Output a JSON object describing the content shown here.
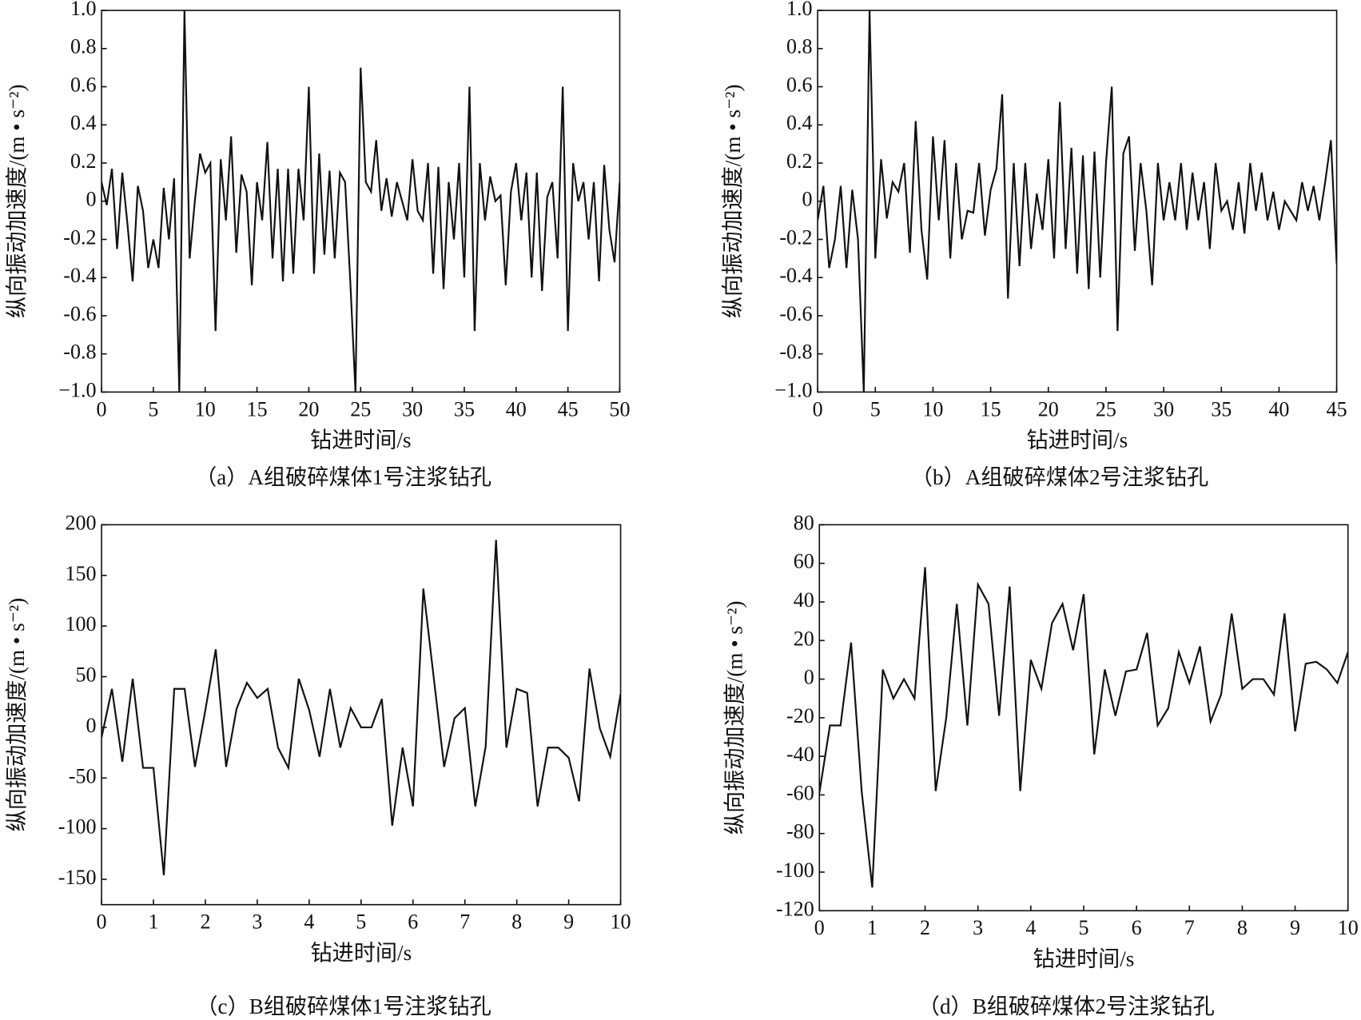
{
  "chart_data": [
    {
      "type": "line",
      "title": "（a）A组破碎煤体1号注浆钻孔",
      "xlabel": "钻进时间/s",
      "ylabel": "纵向振动加速度/(m • s⁻²)",
      "color": "#111111",
      "xlim": [
        0,
        50
      ],
      "xticks": [
        0,
        5,
        10,
        15,
        20,
        25,
        30,
        35,
        40,
        45,
        50
      ],
      "ylim": [
        -1,
        1
      ],
      "yticks": [
        {
          "value": -1,
          "label": "−1.0"
        },
        -0.8,
        -0.6,
        -0.4,
        -0.2,
        0,
        0.2,
        0.4,
        0.6,
        0.8,
        {
          "value": 1,
          "label": "1.0"
        }
      ],
      "x": [
        0,
        0.5,
        1,
        1.5,
        2,
        2.5,
        3,
        3.5,
        4,
        4.5,
        5,
        5.5,
        6,
        6.5,
        7,
        7.5,
        8,
        8.5,
        9,
        9.5,
        10,
        10.5,
        11,
        11.5,
        12,
        12.5,
        13,
        13.5,
        14,
        14.5,
        15,
        15.5,
        16,
        16.5,
        17,
        17.5,
        18,
        18.5,
        19,
        19.5,
        20,
        20.5,
        21,
        21.5,
        22,
        22.5,
        23,
        23.5,
        24,
        24.5,
        25,
        25.5,
        26,
        26.5,
        27,
        27.5,
        28,
        28.5,
        29,
        29.5,
        30,
        30.5,
        31,
        31.5,
        32,
        32.5,
        33,
        33.5,
        34,
        34.5,
        35,
        35.5,
        36,
        36.5,
        37,
        37.5,
        38,
        38.5,
        39,
        39.5,
        40,
        40.5,
        41,
        41.5,
        42,
        42.5,
        43,
        43.5,
        44,
        44.5,
        45,
        45.5,
        46,
        46.5,
        47,
        47.5,
        48,
        48.5,
        49,
        49.5,
        50
      ],
      "values": [
        0.1,
        -0.02,
        0.17,
        -0.25,
        0.15,
        -0.12,
        -0.42,
        0.08,
        -0.05,
        -0.35,
        -0.2,
        -0.35,
        0.07,
        -0.2,
        0.12,
        -1,
        1,
        -0.3,
        0,
        0.25,
        0.15,
        0.2,
        -0.68,
        0.22,
        -0.1,
        0.34,
        -0.27,
        0.14,
        0.05,
        -0.44,
        0.1,
        -0.1,
        0.31,
        -0.3,
        0.17,
        -0.42,
        0.17,
        -0.38,
        0.17,
        -0.1,
        0.6,
        -0.38,
        0.25,
        -0.28,
        0.16,
        -0.3,
        0.15,
        0.1,
        -0.42,
        -1,
        0.7,
        0.1,
        0.05,
        0.32,
        -0.05,
        0.12,
        -0.08,
        0.1,
        0,
        -0.1,
        0.22,
        -0.05,
        -0.1,
        0.2,
        -0.38,
        0.18,
        -0.46,
        0.1,
        -0.2,
        0.2,
        -0.4,
        0.6,
        -0.68,
        0.2,
        -0.1,
        0.13,
        0,
        0.03,
        -0.44,
        0.05,
        0.2,
        -0.1,
        0.15,
        -0.4,
        0.15,
        -0.47,
        0.02,
        0.1,
        -0.3,
        0.6,
        -0.68,
        0.2,
        0,
        0.1,
        -0.2,
        0.1,
        -0.42,
        0.19,
        -0.15,
        -0.32,
        0.1
      ]
    },
    {
      "type": "line",
      "title": "（b）A组破碎煤体2号注浆钻孔",
      "xlabel": "钻进时间/s",
      "ylabel": "纵向振动加速度/(m • s⁻²)",
      "color": "#111111",
      "xlim": [
        0,
        45
      ],
      "xticks": [
        0,
        5,
        10,
        15,
        20,
        25,
        30,
        35,
        40,
        45
      ],
      "ylim": [
        -1,
        1
      ],
      "yticks": [
        {
          "value": -1,
          "label": "−1.0"
        },
        -0.8,
        -0.6,
        -0.4,
        -0.2,
        0,
        0.2,
        0.4,
        0.6,
        0.8,
        {
          "value": 1,
          "label": "1.0"
        }
      ],
      "x": [
        0,
        0.5,
        1,
        1.5,
        2,
        2.5,
        3,
        3.5,
        4,
        4.5,
        5,
        5.5,
        6,
        6.5,
        7,
        7.5,
        8,
        8.5,
        9,
        9.5,
        10,
        10.5,
        11,
        11.5,
        12,
        12.5,
        13,
        13.5,
        14,
        14.5,
        15,
        15.5,
        16,
        16.5,
        17,
        17.5,
        18,
        18.5,
        19,
        19.5,
        20,
        20.5,
        21,
        21.5,
        22,
        22.5,
        23,
        23.5,
        24,
        24.5,
        25,
        25.5,
        26,
        26.5,
        27,
        27.5,
        28,
        28.5,
        29,
        29.5,
        30,
        30.5,
        31,
        31.5,
        32,
        32.5,
        33,
        33.5,
        34,
        34.5,
        35,
        35.5,
        36,
        36.5,
        37,
        37.5,
        38,
        38.5,
        39,
        39.5,
        40,
        40.5,
        41,
        41.5,
        42,
        42.5,
        43,
        43.5,
        44,
        44.5,
        45
      ],
      "values": [
        -0.1,
        0.08,
        -0.35,
        -0.2,
        0.08,
        -0.35,
        0.06,
        -0.2,
        -1,
        1,
        -0.3,
        0.22,
        -0.09,
        0.1,
        0.05,
        0.2,
        -0.27,
        0.42,
        -0.15,
        -0.41,
        0.34,
        -0.1,
        0.32,
        -0.3,
        0.2,
        -0.2,
        -0.05,
        -0.06,
        0.2,
        -0.18,
        0.06,
        0.17,
        0.56,
        -0.51,
        0.2,
        -0.34,
        0.2,
        -0.25,
        0.04,
        -0.15,
        0.22,
        -0.3,
        0.52,
        -0.25,
        0.28,
        -0.38,
        0.24,
        -0.46,
        0.26,
        -0.4,
        0.2,
        0.6,
        -0.68,
        0.25,
        0.34,
        -0.26,
        0.2,
        -0.05,
        -0.44,
        0.2,
        -0.1,
        0.1,
        -0.1,
        0.2,
        -0.15,
        0.15,
        -0.1,
        0.1,
        -0.25,
        0.2,
        -0.05,
        0,
        -0.15,
        0.1,
        -0.17,
        0.2,
        -0.05,
        0.15,
        -0.1,
        0.05,
        -0.15,
        0,
        -0.05,
        -0.1,
        0.1,
        -0.05,
        0.08,
        -0.1,
        0.1,
        0.32,
        -0.33
      ]
    },
    {
      "type": "line",
      "title": "（c）B组破碎煤体1号注浆钻孔",
      "xlabel": "钻进时间/s",
      "ylabel": "纵向振动加速度/(m • s⁻²)",
      "color": "#111111",
      "xlim": [
        0,
        10
      ],
      "xticks": [
        0,
        1,
        2,
        3,
        4,
        5,
        6,
        7,
        8,
        9,
        10
      ],
      "ylim": [
        -175,
        200
      ],
      "yticks": [
        -150,
        -100,
        -50,
        0,
        50,
        100,
        150,
        200
      ],
      "x": [
        0,
        0.2,
        0.4,
        0.6,
        0.8,
        1,
        1.2,
        1.4,
        1.6,
        1.8,
        2,
        2.2,
        2.4,
        2.6,
        2.8,
        3,
        3.2,
        3.4,
        3.6,
        3.8,
        4,
        4.2,
        4.4,
        4.6,
        4.8,
        5,
        5.2,
        5.4,
        5.6,
        5.8,
        6,
        6.2,
        6.4,
        6.6,
        6.8,
        7,
        7.2,
        7.4,
        7.6,
        7.8,
        8,
        8.2,
        8.4,
        8.6,
        8.8,
        9,
        9.2,
        9.4,
        9.6,
        9.8,
        10
      ],
      "values": [
        -10,
        38,
        -34,
        48,
        -40,
        -40,
        -146,
        38,
        38,
        -39,
        17,
        77,
        -39,
        18,
        44,
        29,
        38,
        -20,
        -40,
        48,
        17,
        -29,
        38,
        -20,
        19,
        0,
        0,
        28,
        -97,
        -20,
        -78,
        137,
        49,
        -39,
        9,
        19,
        -78,
        -19,
        185,
        -20,
        38,
        34,
        -78,
        -20,
        -20,
        -30,
        -73,
        58,
        -1,
        -29,
        33
      ]
    },
    {
      "type": "line",
      "title": "（d）B组破碎煤体2号注浆钻孔",
      "xlabel": "钻进时间/s",
      "ylabel": "纵向振动加速度/(m • s⁻²)",
      "color": "#111111",
      "xlim": [
        0,
        10
      ],
      "xticks": [
        0,
        1,
        2,
        3,
        4,
        5,
        6,
        7,
        8,
        9,
        10
      ],
      "ylim": [
        -120,
        80
      ],
      "yticks": [
        -120,
        -100,
        -80,
        -60,
        -40,
        -20,
        0,
        20,
        40,
        60,
        80
      ],
      "x": [
        0,
        0.2,
        0.4,
        0.6,
        0.8,
        1,
        1.2,
        1.4,
        1.6,
        1.8,
        2,
        2.2,
        2.4,
        2.6,
        2.8,
        3,
        3.2,
        3.4,
        3.6,
        3.8,
        4,
        4.2,
        4.4,
        4.6,
        4.8,
        5,
        5.2,
        5.4,
        5.6,
        5.8,
        6,
        6.2,
        6.4,
        6.6,
        6.8,
        7,
        7.2,
        7.4,
        7.6,
        7.8,
        8,
        8.2,
        8.4,
        8.6,
        8.8,
        9,
        9.2,
        9.4,
        9.6,
        9.8,
        10
      ],
      "values": [
        -59,
        -24,
        -24,
        19,
        -58,
        -108,
        5,
        -10,
        0,
        -10,
        58,
        -58,
        -20,
        39,
        -24,
        49,
        39,
        -19,
        48,
        -58,
        10,
        -5,
        29,
        39,
        15,
        44,
        -39,
        5,
        -19,
        4,
        5,
        24,
        -24,
        -15,
        14,
        -2,
        17,
        -22,
        -8,
        34,
        -5,
        0,
        0,
        -8,
        34,
        -27,
        8,
        9,
        5,
        -2,
        14
      ]
    }
  ]
}
